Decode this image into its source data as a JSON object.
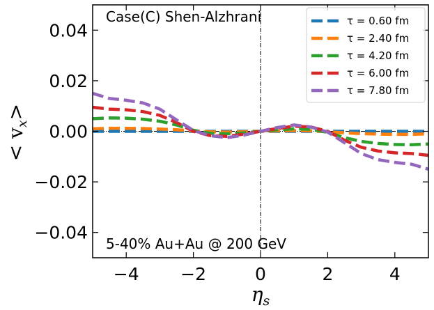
{
  "chart_data": {
    "type": "line",
    "title": "",
    "xlabel": "η",
    "xlabel_sub": "s",
    "ylabel": "< v",
    "ylabel_sub": "x",
    "ylabel_end": ">",
    "xlim": [
      -5,
      5
    ],
    "ylim": [
      -0.05,
      0.05
    ],
    "x_ticks": [
      -4,
      -2,
      0,
      2,
      4
    ],
    "x_tick_labels": [
      "−4",
      "−2",
      "0",
      "2",
      "4"
    ],
    "y_ticks": [
      -0.04,
      -0.02,
      0.0,
      0.02,
      0.04
    ],
    "y_tick_labels": [
      "−0.04",
      "−0.02",
      "0.00",
      "0.02",
      "0.04"
    ],
    "annotations": {
      "top_left": "Case(C) Shen-Alzhrani",
      "bottom_left": "5-40% Au+Au @ 200 GeV"
    },
    "reference_lines": {
      "vertical_x": 0,
      "horizontal_y": 0
    },
    "legend_position": "top-right",
    "x": [
      -5,
      -4.5,
      -4,
      -3.5,
      -3,
      -2.5,
      -2,
      -1.5,
      -1,
      -0.5,
      0,
      0.5,
      1,
      1.5,
      2,
      2.5,
      3,
      3.5,
      4,
      4.5,
      5
    ],
    "series": [
      {
        "name": "τ = 0.60 fm",
        "color": "#1f77b4",
        "values": [
          0.0,
          0.0,
          0.0,
          0.0,
          0.0,
          0.0,
          0.0,
          0.0,
          0.0,
          0.0,
          0.0,
          0.0,
          0.0,
          0.0,
          0.0,
          0.0,
          0.0,
          0.0,
          0.0,
          0.0,
          0.0
        ]
      },
      {
        "name": "τ = 2.40 fm",
        "color": "#ff7f0e",
        "values": [
          0.001,
          0.0012,
          0.0012,
          0.0011,
          0.0009,
          0.0006,
          0.0002,
          -0.0002,
          -0.0003,
          -0.0002,
          0.0,
          0.0002,
          0.0003,
          0.0002,
          -0.0002,
          -0.0006,
          -0.0009,
          -0.0011,
          -0.0012,
          -0.0012,
          -0.001
        ]
      },
      {
        "name": "τ = 4.20 fm",
        "color": "#2ca02c",
        "values": [
          0.005,
          0.0053,
          0.0052,
          0.0048,
          0.004,
          0.0025,
          0.0004,
          -0.0008,
          -0.001,
          -0.0006,
          0.0,
          0.0006,
          0.001,
          0.0008,
          -0.0004,
          -0.0025,
          -0.004,
          -0.0048,
          -0.0052,
          -0.0053,
          -0.005
        ]
      },
      {
        "name": "τ = 6.00 fm",
        "color": "#d62728",
        "values": [
          0.0095,
          0.0088,
          0.0085,
          0.0078,
          0.0063,
          0.0035,
          0.0,
          -0.0017,
          -0.002,
          -0.0011,
          0.0,
          0.0011,
          0.002,
          0.0017,
          0.0,
          -0.0035,
          -0.0063,
          -0.0078,
          -0.0085,
          -0.0088,
          -0.0095
        ]
      },
      {
        "name": "τ = 7.80 fm",
        "color": "#9467bd",
        "values": [
          0.015,
          0.013,
          0.0123,
          0.0112,
          0.0088,
          0.0045,
          0.0003,
          -0.0017,
          -0.0025,
          -0.0015,
          0.0,
          0.0015,
          0.0025,
          0.0017,
          -0.0003,
          -0.0045,
          -0.0088,
          -0.0112,
          -0.0123,
          -0.013,
          -0.015
        ]
      }
    ]
  }
}
